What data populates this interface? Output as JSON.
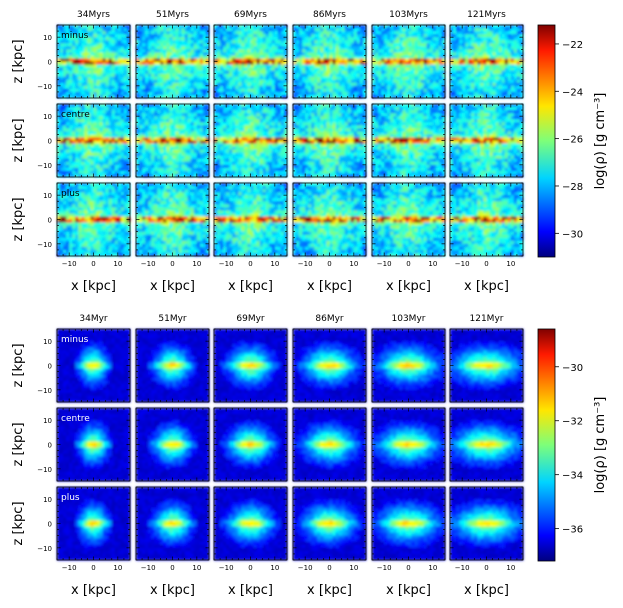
{
  "chart_data": [
    {
      "type": "heatmap",
      "panel_group": "top",
      "times": [
        "34Myrs",
        "51Myrs",
        "69Myrs",
        "86Myrs",
        "103Myrs",
        "121Myrs"
      ],
      "rows": [
        "minus",
        "centre",
        "plus"
      ],
      "xlabel": "x [kpc]",
      "ylabel": "z [kpc]",
      "xlim": [
        -15,
        15
      ],
      "ylim": [
        -15,
        15
      ],
      "x_ticks": [
        "−10",
        "0",
        "10"
      ],
      "y_ticks": [
        "10",
        "0",
        "−10"
      ],
      "colorbar": {
        "label": "log(ρ) [g cm⁻³]",
        "range": [
          -31,
          -21.2
        ],
        "ticks": [
          "−22",
          "−24",
          "−26",
          "−28",
          "−30"
        ],
        "tick_values": [
          -22,
          -24,
          -26,
          -28,
          -30
        ],
        "colormap": "jet"
      }
    },
    {
      "type": "heatmap",
      "panel_group": "bottom",
      "times": [
        "34Myr",
        "51Myr",
        "69Myr",
        "86Myr",
        "103Myr",
        "121Myr"
      ],
      "rows": [
        "minus",
        "centre",
        "plus"
      ],
      "xlabel": "x [kpc]",
      "ylabel": "z [kpc]",
      "xlim": [
        -15,
        15
      ],
      "ylim": [
        -15,
        15
      ],
      "x_ticks": [
        "−10",
        "0",
        "10"
      ],
      "y_ticks": [
        "10",
        "0",
        "−10"
      ],
      "colorbar": {
        "label": "log(ρ) [g cm⁻³]",
        "range": [
          -37.2,
          -28.6
        ],
        "ticks": [
          "−30",
          "−32",
          "−34",
          "−36"
        ],
        "tick_values": [
          -30,
          -32,
          -34,
          -36
        ],
        "colormap": "jet"
      }
    }
  ]
}
